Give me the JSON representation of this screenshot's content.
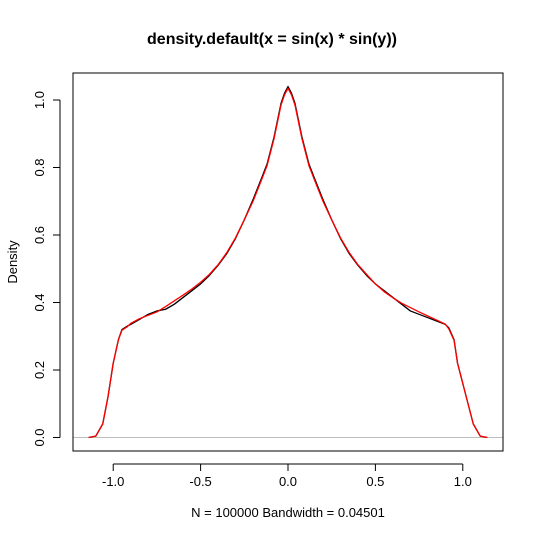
{
  "chart_data": {
    "type": "line",
    "title": "density.default(x = sin(x) * sin(y))",
    "xlabel": "N = 100000   Bandwidth = 0.04501",
    "ylabel": "Density",
    "xlim": [
      -1.23,
      1.23
    ],
    "ylim": [
      -0.04,
      1.08
    ],
    "x_ticks": [
      -1.0,
      -0.5,
      0.0,
      0.5,
      1.0
    ],
    "x_tick_labels": [
      "-1.0",
      "-0.5",
      "0.0",
      "0.5",
      "1.0"
    ],
    "y_ticks": [
      0.0,
      0.2,
      0.4,
      0.6,
      0.8,
      1.0
    ],
    "y_tick_labels": [
      "0.0",
      "0.2",
      "0.4",
      "0.6",
      "0.8",
      "1.0"
    ],
    "zero_line": {
      "y": 0,
      "color": "#bebebe"
    },
    "series": [
      {
        "color": "#000000",
        "x": [
          -1.14,
          -1.1,
          -1.06,
          -1.03,
          -1.0,
          -0.97,
          -0.95,
          -0.92,
          -0.9,
          -0.85,
          -0.8,
          -0.75,
          -0.7,
          -0.65,
          -0.6,
          -0.55,
          -0.5,
          -0.45,
          -0.4,
          -0.35,
          -0.3,
          -0.25,
          -0.2,
          -0.15,
          -0.12,
          -0.1,
          -0.08,
          -0.06,
          -0.04,
          -0.02,
          0.0,
          0.02,
          0.04,
          0.06,
          0.08,
          0.1,
          0.12,
          0.15,
          0.2,
          0.25,
          0.3,
          0.35,
          0.4,
          0.45,
          0.5,
          0.55,
          0.6,
          0.65,
          0.7,
          0.75,
          0.8,
          0.85,
          0.9,
          0.92,
          0.95,
          0.97,
          1.0,
          1.03,
          1.06,
          1.1,
          1.14
        ],
        "y": [
          0.0,
          0.004,
          0.04,
          0.12,
          0.22,
          0.29,
          0.32,
          0.33,
          0.335,
          0.35,
          0.365,
          0.375,
          0.38,
          0.395,
          0.415,
          0.435,
          0.455,
          0.48,
          0.51,
          0.545,
          0.59,
          0.645,
          0.705,
          0.77,
          0.81,
          0.85,
          0.89,
          0.94,
          0.99,
          1.02,
          1.04,
          1.02,
          0.99,
          0.94,
          0.89,
          0.85,
          0.81,
          0.77,
          0.705,
          0.645,
          0.59,
          0.545,
          0.51,
          0.48,
          0.455,
          0.435,
          0.415,
          0.395,
          0.375,
          0.365,
          0.355,
          0.345,
          0.335,
          0.325,
          0.29,
          0.22,
          0.16,
          0.1,
          0.04,
          0.004,
          0.0
        ]
      },
      {
        "color": "#ff0000",
        "x": [
          -1.14,
          -1.1,
          -1.06,
          -1.03,
          -1.0,
          -0.97,
          -0.95,
          -0.92,
          -0.9,
          -0.85,
          -0.8,
          -0.75,
          -0.7,
          -0.65,
          -0.6,
          -0.55,
          -0.5,
          -0.45,
          -0.4,
          -0.35,
          -0.3,
          -0.25,
          -0.2,
          -0.15,
          -0.12,
          -0.1,
          -0.08,
          -0.06,
          -0.04,
          -0.02,
          0.0,
          0.02,
          0.04,
          0.06,
          0.08,
          0.1,
          0.12,
          0.15,
          0.2,
          0.25,
          0.3,
          0.35,
          0.4,
          0.45,
          0.5,
          0.55,
          0.6,
          0.65,
          0.7,
          0.75,
          0.8,
          0.85,
          0.9,
          0.92,
          0.95,
          0.97,
          1.0,
          1.03,
          1.06,
          1.1,
          1.14
        ],
        "y": [
          0.0,
          0.004,
          0.04,
          0.12,
          0.22,
          0.29,
          0.318,
          0.328,
          0.338,
          0.352,
          0.362,
          0.372,
          0.388,
          0.405,
          0.422,
          0.44,
          0.46,
          0.483,
          0.512,
          0.548,
          0.592,
          0.645,
          0.7,
          0.765,
          0.805,
          0.845,
          0.885,
          0.935,
          0.985,
          1.015,
          1.035,
          1.015,
          0.985,
          0.935,
          0.885,
          0.845,
          0.805,
          0.765,
          0.7,
          0.645,
          0.592,
          0.548,
          0.512,
          0.483,
          0.455,
          0.432,
          0.414,
          0.398,
          0.385,
          0.372,
          0.36,
          0.348,
          0.336,
          0.322,
          0.288,
          0.22,
          0.16,
          0.1,
          0.04,
          0.004,
          0.0
        ]
      }
    ]
  }
}
